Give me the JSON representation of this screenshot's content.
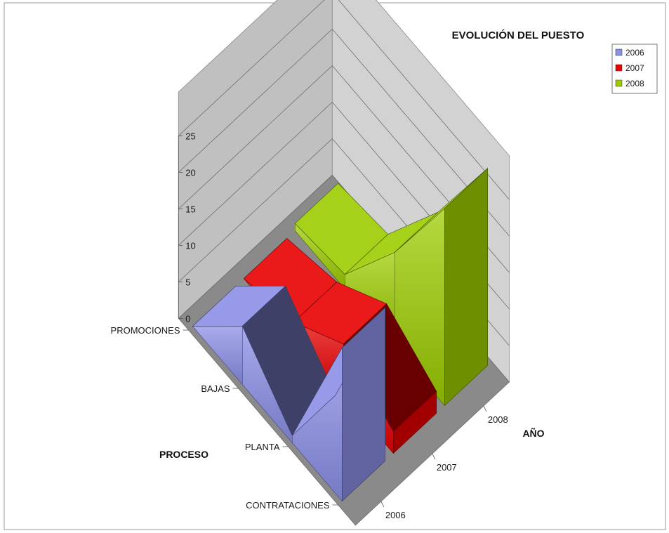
{
  "chart_data": {
    "type": "area",
    "title": "EVOLUCIÓN DEL PUESTO",
    "xlabel": "PROCESO",
    "ylabel": "AÑO",
    "zlim": [
      0,
      25
    ],
    "z_ticks": [
      "25",
      "20",
      "15",
      "10",
      "5",
      "0"
    ],
    "categories": [
      "CONTRATACIONES",
      "PLANTA",
      "BAJAS",
      "PROMOCIONES"
    ],
    "series": [
      {
        "name": "2006",
        "values": [
          21,
          1,
          8,
          0
        ]
      },
      {
        "name": "2007",
        "values": [
          3,
          7,
          2,
          0
        ]
      },
      {
        "name": "2008",
        "values": [
          27,
          13,
          2,
          1
        ]
      }
    ],
    "legend_position": "top-right",
    "grid": true,
    "colors": {
      "2006": "#8b8fe6",
      "2007": "#e80000",
      "2008": "#9ccc00",
      "walls": "#c0c0c0",
      "floor": "#8a8a8a"
    }
  }
}
